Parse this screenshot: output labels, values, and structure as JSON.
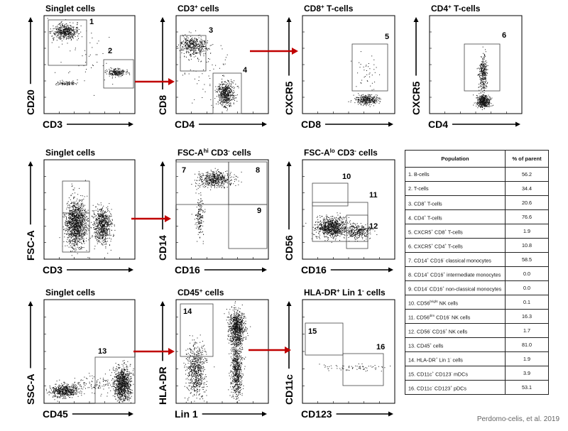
{
  "panels": [
    {
      "id": "singlet-1",
      "title": [
        {
          "t": "Singlet cells"
        }
      ],
      "xlabel": "CD3",
      "ylabel": "CD20",
      "gates": [
        "1",
        "2"
      ]
    },
    {
      "id": "cd3",
      "title": [
        {
          "t": "CD3"
        },
        {
          "t": "+",
          "s": 1
        },
        {
          "t": " cells"
        }
      ],
      "xlabel": "CD4",
      "ylabel": "CD8",
      "gates": [
        "3",
        "4"
      ]
    },
    {
      "id": "cd8",
      "title": [
        {
          "t": "CD8"
        },
        {
          "t": "+",
          "s": 1
        },
        {
          "t": " T-cells"
        }
      ],
      "xlabel": "CD8",
      "ylabel": "CXCR5",
      "gates": [
        "5"
      ]
    },
    {
      "id": "cd4",
      "title": [
        {
          "t": "CD4"
        },
        {
          "t": "+",
          "s": 1
        },
        {
          "t": " T-cells"
        }
      ],
      "xlabel": "CD4",
      "ylabel": "CXCR5",
      "gates": [
        "6"
      ]
    },
    {
      "id": "singlet-2",
      "title": [
        {
          "t": "Singlet cells"
        }
      ],
      "xlabel": "CD3",
      "ylabel": "FSC-A",
      "gates": []
    },
    {
      "id": "fsc-hi",
      "title": [
        {
          "t": "FSC-A"
        },
        {
          "t": "hi",
          "s": 1
        },
        {
          "t": " CD3"
        },
        {
          "t": "-",
          "s": 1
        },
        {
          "t": " cells"
        }
      ],
      "xlabel": "CD16",
      "ylabel": "CD14",
      "gates": [
        "7",
        "8",
        "9"
      ]
    },
    {
      "id": "fsc-lo",
      "title": [
        {
          "t": "FSC-A"
        },
        {
          "t": "lo",
          "s": 1
        },
        {
          "t": " CD3"
        },
        {
          "t": "-",
          "s": 1
        },
        {
          "t": " cells"
        }
      ],
      "xlabel": "CD16",
      "ylabel": "CD56",
      "gates": [
        "10",
        "11",
        "12"
      ]
    },
    {
      "id": "singlet-3",
      "title": [
        {
          "t": "Singlet cells"
        }
      ],
      "xlabel": "CD45",
      "ylabel": "SSC-A",
      "gates": [
        "13"
      ]
    },
    {
      "id": "cd45",
      "title": [
        {
          "t": "CD45"
        },
        {
          "t": "+",
          "s": 1
        },
        {
          "t": " cells"
        }
      ],
      "xlabel": "Lin 1",
      "ylabel": "HLA-DR",
      "gates": [
        "14"
      ]
    },
    {
      "id": "hladr",
      "title": [
        {
          "t": "HLA-DR"
        },
        {
          "t": "+",
          "s": 1
        },
        {
          "t": " Lin 1"
        },
        {
          "t": "-",
          "s": 1
        },
        {
          "t": " cells"
        }
      ],
      "xlabel": "CD123",
      "ylabel": "CD11c",
      "gates": [
        "15",
        "16"
      ]
    }
  ],
  "arrow_color": "#c00000",
  "table": {
    "headers": [
      "Population",
      "% of parent"
    ],
    "rows": [
      {
        "label": [
          {
            "t": "1. B-cells"
          }
        ],
        "value": "56.2"
      },
      {
        "label": [
          {
            "t": "2. T-cells"
          }
        ],
        "value": "34.4"
      },
      {
        "label": [
          {
            "t": "3. CD8"
          },
          {
            "t": "+",
            "s": 1
          },
          {
            "t": " T-cells"
          }
        ],
        "value": "20.6"
      },
      {
        "label": [
          {
            "t": "4. CD4"
          },
          {
            "t": "+",
            "s": 1
          },
          {
            "t": " T-cells"
          }
        ],
        "value": "76.6"
      },
      {
        "label": [
          {
            "t": "5. CXCR5"
          },
          {
            "t": "+",
            "s": 1
          },
          {
            "t": " CD8"
          },
          {
            "t": "+",
            "s": 1
          },
          {
            "t": " T-cells"
          }
        ],
        "value": "1.9"
      },
      {
        "label": [
          {
            "t": "6. CXCR5"
          },
          {
            "t": "+",
            "s": 1
          },
          {
            "t": " CD4"
          },
          {
            "t": "+",
            "s": 1
          },
          {
            "t": " T-cells"
          }
        ],
        "value": "10.8"
      },
      {
        "label": [
          {
            "t": "7. CD14"
          },
          {
            "t": "+",
            "s": 1
          },
          {
            "t": " CD16"
          },
          {
            "t": "-",
            "s": 1
          },
          {
            "t": " classical monocytes"
          }
        ],
        "value": "58.5"
      },
      {
        "label": [
          {
            "t": "8. CD14"
          },
          {
            "t": "+",
            "s": 1
          },
          {
            "t": " CD16"
          },
          {
            "t": "+",
            "s": 1
          },
          {
            "t": " intermediate monocytes"
          }
        ],
        "value": "0.0"
      },
      {
        "label": [
          {
            "t": "9. CD14"
          },
          {
            "t": "-",
            "s": 1
          },
          {
            "t": " CD16"
          },
          {
            "t": "+",
            "s": 1
          },
          {
            "t": " non-classical monocytes"
          }
        ],
        "value": "0.0"
      },
      {
        "label": [
          {
            "t": "10. CD56"
          },
          {
            "t": "bright",
            "s": 1
          },
          {
            "t": " NK cells"
          }
        ],
        "value": "0.1"
      },
      {
        "label": [
          {
            "t": "11. CD56"
          },
          {
            "t": "dim",
            "s": 1
          },
          {
            "t": " CD16"
          },
          {
            "t": "-",
            "s": 1
          },
          {
            "t": " NK cells"
          }
        ],
        "value": "16.3"
      },
      {
        "label": [
          {
            "t": "12. CD56"
          },
          {
            "t": "-",
            "s": 1
          },
          {
            "t": " CD16"
          },
          {
            "t": "+",
            "s": 1
          },
          {
            "t": " NK cells"
          }
        ],
        "value": "1.7"
      },
      {
        "label": [
          {
            "t": "13. CD45"
          },
          {
            "t": "+",
            "s": 1
          },
          {
            "t": " cells"
          }
        ],
        "value": "81.0"
      },
      {
        "label": [
          {
            "t": "14. HLA-DR"
          },
          {
            "t": "+",
            "s": 1
          },
          {
            "t": " Lin 1"
          },
          {
            "t": "-",
            "s": 1
          },
          {
            "t": " cells"
          }
        ],
        "value": "1.9"
      },
      {
        "label": [
          {
            "t": "15. CD11c"
          },
          {
            "t": "+",
            "s": 1
          },
          {
            "t": " CD123"
          },
          {
            "t": "-",
            "s": 1
          },
          {
            "t": " mDCs"
          }
        ],
        "value": "3.9"
      },
      {
        "label": [
          {
            "t": "16. CD11c"
          },
          {
            "t": "-",
            "s": 1
          },
          {
            "t": " CD123"
          },
          {
            "t": "+",
            "s": 1
          },
          {
            "t": " pDCs"
          }
        ],
        "value": "53.1"
      }
    ]
  },
  "citation": "Perdomo-celis, et al. 2019"
}
